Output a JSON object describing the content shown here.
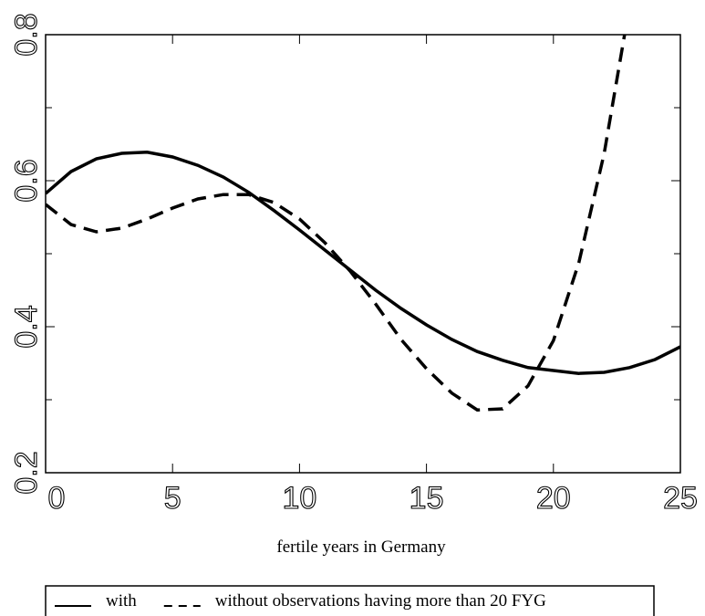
{
  "chart_data": {
    "type": "line",
    "xlabel": "fertile years in Germany",
    "x": [
      0,
      1,
      2,
      3,
      4,
      5,
      6,
      7,
      8,
      9,
      10,
      11,
      12,
      13,
      14,
      15,
      16,
      17,
      18,
      19,
      20,
      21,
      22,
      23,
      24,
      25
    ],
    "series": [
      {
        "name": "with",
        "color": "#000000",
        "dash": "solid",
        "values": [
          0.5825,
          0.6125,
          0.63,
          0.6375,
          0.639,
          0.6325,
          0.621,
          0.605,
          0.584,
          0.559,
          0.5325,
          0.505,
          0.4775,
          0.45,
          0.425,
          0.4025,
          0.3825,
          0.366,
          0.354,
          0.344,
          0.34,
          0.336,
          0.3375,
          0.344,
          0.355,
          0.3725
        ]
      },
      {
        "name": "without observations having more than 20 FYG",
        "color": "#000000",
        "dash": "dashed",
        "values": [
          0.5675,
          0.54,
          0.53,
          0.535,
          0.5475,
          0.5625,
          0.575,
          0.581,
          0.581,
          0.57,
          0.5475,
          0.515,
          0.476,
          0.431,
          0.3825,
          0.3425,
          0.309,
          0.286,
          0.2875,
          0.319,
          0.381,
          0.4875,
          0.6375,
          0.84,
          null,
          null
        ]
      }
    ],
    "xlim": [
      0,
      25
    ],
    "xticks": [
      0,
      5,
      10,
      15,
      20,
      25
    ],
    "ylim": [
      0.2,
      0.8
    ],
    "yticks": [
      0.2,
      0.4,
      0.6,
      0.8
    ],
    "yminorticks": [
      0.3,
      0.5,
      0.7
    ],
    "legend": "bottom"
  }
}
